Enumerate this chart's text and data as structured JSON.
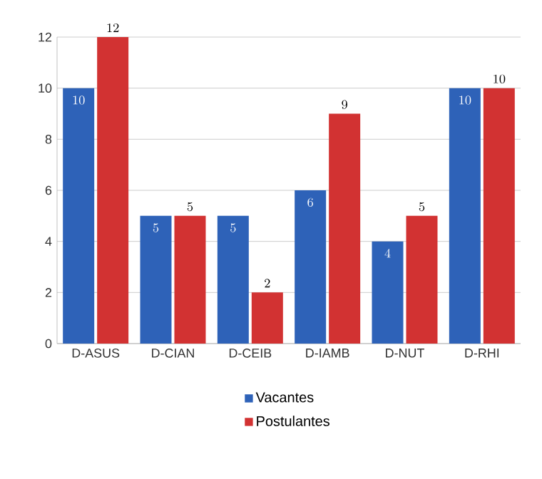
{
  "chart_data": {
    "type": "bar",
    "categories": [
      "D-ASUS",
      "D-CIAN",
      "D-CEIB",
      "D-IAMB",
      "D-NUT",
      "D-RHI"
    ],
    "series": [
      {
        "name": "Vacantes",
        "color": "#2e62b8",
        "values": [
          10,
          5,
          5,
          6,
          4,
          10
        ]
      },
      {
        "name": "Postulantes",
        "color": "#d23232",
        "values": [
          12,
          5,
          2,
          9,
          5,
          10
        ]
      }
    ],
    "ylim": [
      0,
      12
    ],
    "yticks": [
      0,
      2,
      4,
      6,
      8,
      10,
      12
    ],
    "grid": "y",
    "legend": "bottom",
    "data_labels": true
  }
}
